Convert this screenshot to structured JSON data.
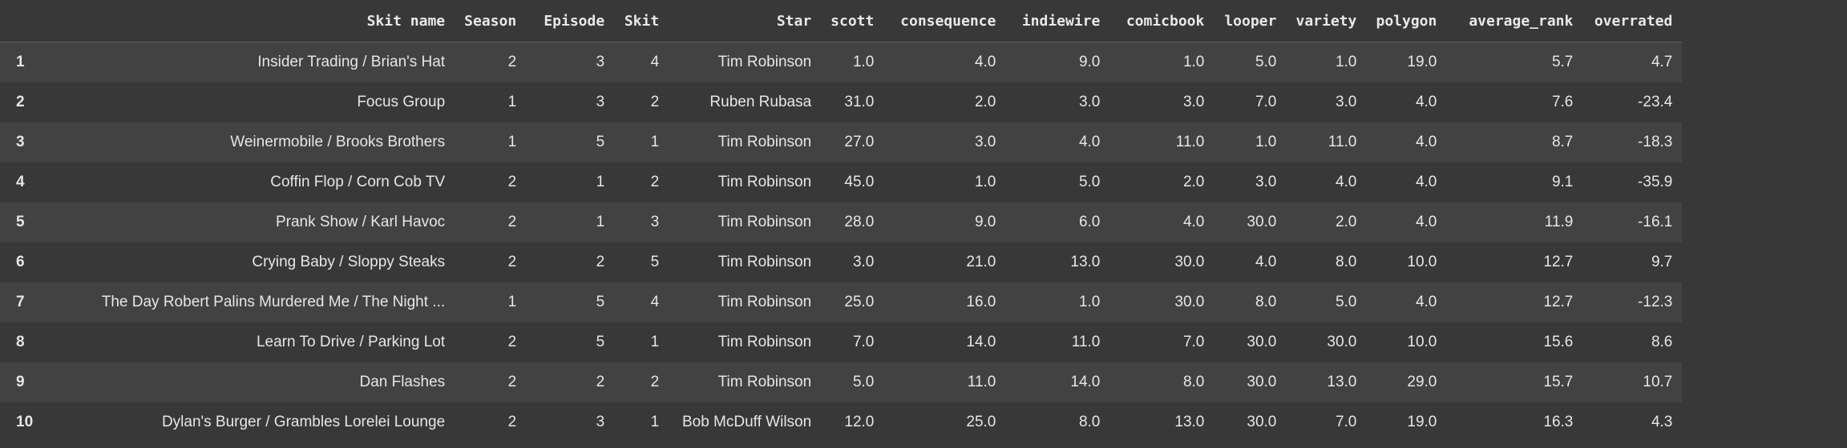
{
  "columns": [
    "",
    "Skit name",
    "Season",
    "Episode",
    "Skit",
    "Star",
    "scott",
    "consequence",
    "indiewire",
    "comicbook",
    "looper",
    "variety",
    "polygon",
    "average_rank",
    "overrated"
  ],
  "rows": [
    [
      "1",
      "Insider Trading / Brian's Hat",
      "2",
      "3",
      "4",
      "Tim Robinson",
      "1.0",
      "4.0",
      "9.0",
      "1.0",
      "5.0",
      "1.0",
      "19.0",
      "5.7",
      "4.7"
    ],
    [
      "2",
      "Focus Group",
      "1",
      "3",
      "2",
      "Ruben Rubasa",
      "31.0",
      "2.0",
      "3.0",
      "3.0",
      "7.0",
      "3.0",
      "4.0",
      "7.6",
      "-23.4"
    ],
    [
      "3",
      "Weinermobile / Brooks Brothers",
      "1",
      "5",
      "1",
      "Tim Robinson",
      "27.0",
      "3.0",
      "4.0",
      "11.0",
      "1.0",
      "11.0",
      "4.0",
      "8.7",
      "-18.3"
    ],
    [
      "4",
      "Coffin Flop / Corn Cob TV",
      "2",
      "1",
      "2",
      "Tim Robinson",
      "45.0",
      "1.0",
      "5.0",
      "2.0",
      "3.0",
      "4.0",
      "4.0",
      "9.1",
      "-35.9"
    ],
    [
      "5",
      "Prank Show / Karl Havoc",
      "2",
      "1",
      "3",
      "Tim Robinson",
      "28.0",
      "9.0",
      "6.0",
      "4.0",
      "30.0",
      "2.0",
      "4.0",
      "11.9",
      "-16.1"
    ],
    [
      "6",
      "Crying Baby / Sloppy Steaks",
      "2",
      "2",
      "5",
      "Tim Robinson",
      "3.0",
      "21.0",
      "13.0",
      "30.0",
      "4.0",
      "8.0",
      "10.0",
      "12.7",
      "9.7"
    ],
    [
      "7",
      "The Day Robert Palins Murdered Me / The Night ...",
      "1",
      "5",
      "4",
      "Tim Robinson",
      "25.0",
      "16.0",
      "1.0",
      "30.0",
      "8.0",
      "5.0",
      "4.0",
      "12.7",
      "-12.3"
    ],
    [
      "8",
      "Learn To Drive / Parking Lot",
      "2",
      "5",
      "1",
      "Tim Robinson",
      "7.0",
      "14.0",
      "11.0",
      "7.0",
      "30.0",
      "30.0",
      "10.0",
      "15.6",
      "8.6"
    ],
    [
      "9",
      "Dan Flashes",
      "2",
      "2",
      "2",
      "Tim Robinson",
      "5.0",
      "11.0",
      "14.0",
      "8.0",
      "30.0",
      "13.0",
      "29.0",
      "15.7",
      "10.7"
    ],
    [
      "10",
      "Dylan's Burger / Grambles Lorelei Lounge",
      "2",
      "3",
      "1",
      "Bob McDuff Wilson",
      "12.0",
      "25.0",
      "8.0",
      "13.0",
      "30.0",
      "7.0",
      "19.0",
      "16.3",
      "4.3"
    ]
  ]
}
